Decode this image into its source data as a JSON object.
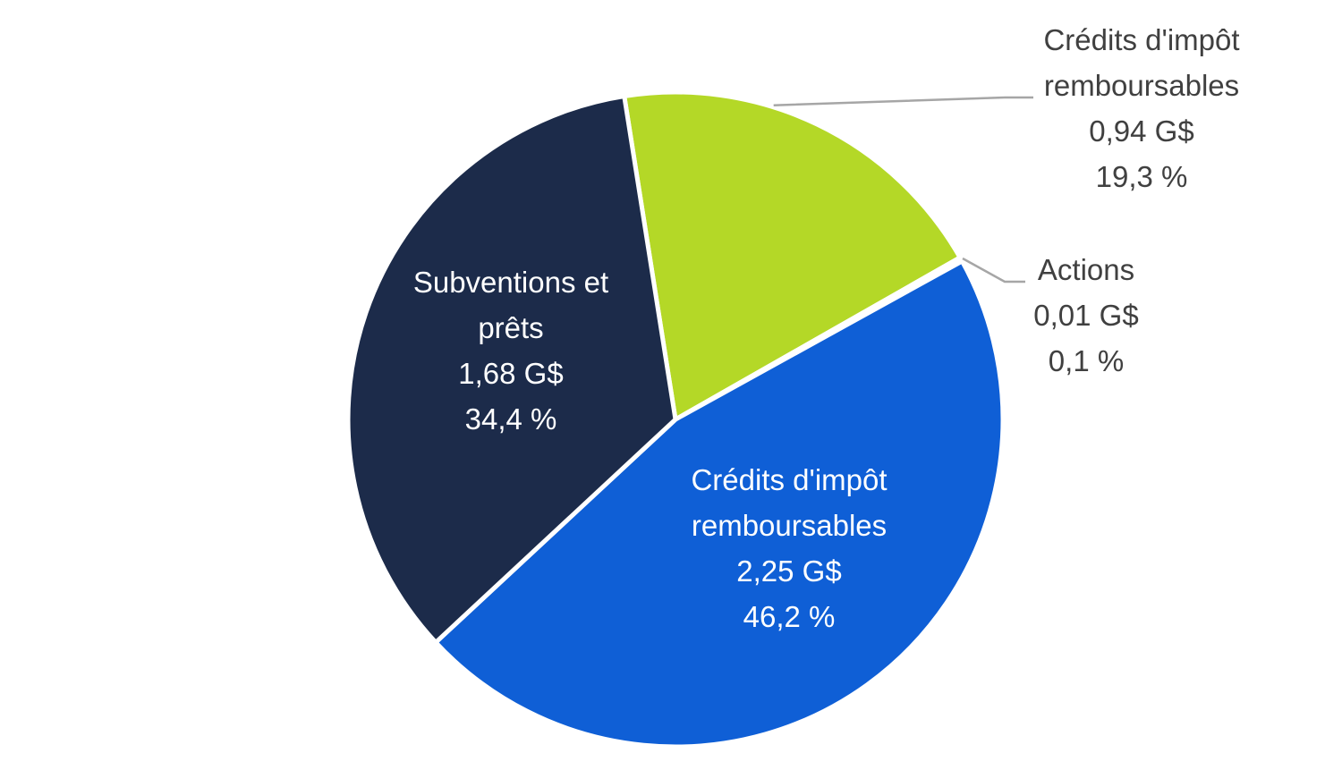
{
  "chart_data": {
    "type": "pie",
    "title": "",
    "unit": "G$",
    "colors": {
      "tax_credits_large": "#0F5FD6",
      "grants_loans": "#1C2B4A",
      "tax_credits_small": "#B4D827",
      "shares": "#B4D827",
      "leader_line": "#A6A6A6",
      "label_dark": "#404040",
      "label_light": "#FFFFFF"
    },
    "slices": [
      {
        "key": "tax_credits_small",
        "label_lines": [
          "Crédits d'impôt",
          "remboursables"
        ],
        "value": 0.94,
        "value_text": "0,94 G$",
        "percent": 19.3,
        "percent_text": "19,3 %"
      },
      {
        "key": "shares",
        "label_lines": [
          "Actions"
        ],
        "value": 0.01,
        "value_text": "0,01 G$",
        "percent": 0.1,
        "percent_text": "0,1 %"
      },
      {
        "key": "tax_credits_large",
        "label_lines": [
          "Crédits d'impôt",
          "remboursables"
        ],
        "value": 2.25,
        "value_text": "2,25 G$",
        "percent": 46.2,
        "percent_text": "46,2 %"
      },
      {
        "key": "grants_loans",
        "label_lines": [
          "Subventions et",
          "prêts"
        ],
        "value": 1.68,
        "value_text": "1,68 G$",
        "percent": 34.4,
        "percent_text": "34,4 %"
      }
    ]
  }
}
